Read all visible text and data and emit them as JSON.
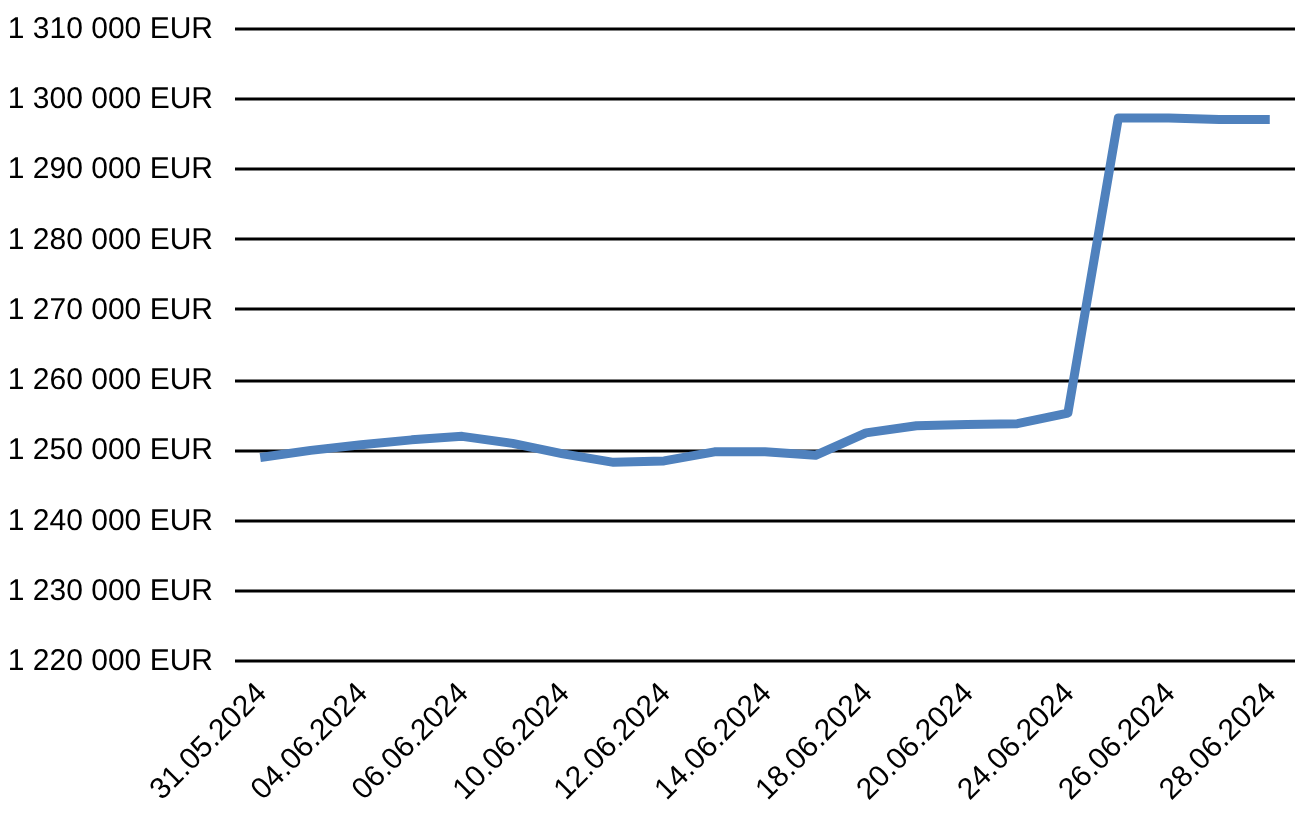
{
  "chart_data": {
    "type": "line",
    "categories": [
      "31.05.2024",
      null,
      "04.06.2024",
      null,
      "06.06.2024",
      null,
      "10.06.2024",
      null,
      "12.06.2024",
      null,
      "14.06.2024",
      null,
      "18.06.2024",
      null,
      "20.06.2024",
      null,
      "24.06.2024",
      null,
      "26.06.2024",
      null,
      "28.06.2024"
    ],
    "series": [
      {
        "color": "#4f81bd",
        "values": [
          1249000,
          1250000,
          1250800,
          1251500,
          1252000,
          1251000,
          1249500,
          1248300,
          1248500,
          1249800,
          1249800,
          1249300,
          1252500,
          1253500,
          1253700,
          1253800,
          1255300,
          1297300,
          1297300,
          1297100,
          1297100
        ]
      }
    ],
    "ylim": [
      1220000,
      1310000
    ],
    "yticks": [
      {
        "value": 1220000,
        "label": "1 220 000 EUR"
      },
      {
        "value": 1230000,
        "label": "1 230 000 EUR"
      },
      {
        "value": 1240000,
        "label": "1 240 000 EUR"
      },
      {
        "value": 1250000,
        "label": "1 250 000 EUR"
      },
      {
        "value": 1260000,
        "label": "1 260 000 EUR"
      },
      {
        "value": 1270000,
        "label": "1 270 000 EUR"
      },
      {
        "value": 1280000,
        "label": "1 280 000 EUR"
      },
      {
        "value": 1290000,
        "label": "1 290 000 EUR"
      },
      {
        "value": 1300000,
        "label": "1 300 000 EUR"
      },
      {
        "value": 1310000,
        "label": "1 310 000 EUR"
      }
    ],
    "grid": "y",
    "marker": "none",
    "line_style": "solid"
  }
}
